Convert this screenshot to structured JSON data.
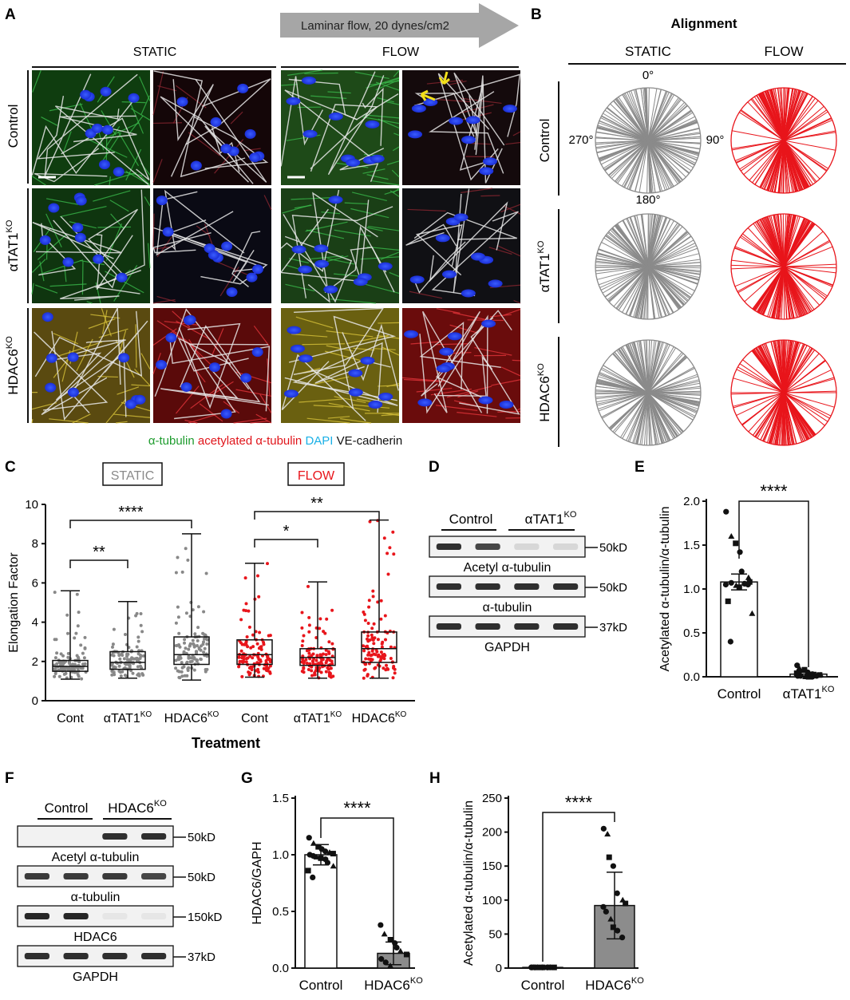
{
  "panels": {
    "A": {
      "letter": "A",
      "arrow_text": "Laminar flow, 20 dynes/cm2",
      "static": "STATIC",
      "flow": "FLOW",
      "rows": [
        {
          "base": "Control",
          "sup": ""
        },
        {
          "base": "αTAT1",
          "sup": "KO"
        },
        {
          "base": "HDAC6",
          "sup": "KO"
        }
      ],
      "legend": [
        {
          "text": "α-tubulin",
          "color": "#1e9c2e"
        },
        {
          "text": "acetylated α-tubulin",
          "color": "#e0151b"
        },
        {
          "text": "DAPI",
          "color": "#1ab0e6"
        },
        {
          "text": "VE-cadherin",
          "color": "#111111"
        }
      ]
    },
    "B": {
      "letter": "B",
      "title": "Alignment",
      "static": "STATIC",
      "flow": "FLOW",
      "angles": [
        "0°",
        "90°",
        "180°",
        "270°"
      ],
      "static_color": "#8a8a8a",
      "flow_color": "#e8151b"
    },
    "C": {
      "letter": "C",
      "static_box": "STATIC",
      "flow_box": "FLOW",
      "sig": [
        "**",
        "****",
        "*",
        "**"
      ]
    },
    "D": {
      "letter": "D",
      "lanes": [
        {
          "base": "Control",
          "sup": ""
        },
        {
          "base": "αTAT1",
          "sup": "KO"
        }
      ],
      "blots": [
        "Acetyl α-tubulin",
        "α-tubulin",
        "GAPDH"
      ],
      "sizes": [
        "50kD",
        "50kD",
        "37kD"
      ]
    },
    "E": {
      "letter": "E",
      "sig": "****"
    },
    "F": {
      "letter": "F",
      "lanes": [
        {
          "base": "Control",
          "sup": ""
        },
        {
          "base": "HDAC6",
          "sup": "KO"
        }
      ],
      "blots": [
        "Acetyl α-tubulin",
        "α-tubulin",
        "HDAC6",
        "GAPDH"
      ],
      "sizes": [
        "50kD",
        "50kD",
        "150kD",
        "37kD"
      ]
    },
    "G": {
      "letter": "G",
      "sig": "****"
    },
    "H": {
      "letter": "H",
      "sig": "****"
    }
  },
  "chart_data": [
    {
      "panel": "C",
      "type": "box",
      "ylabel": "Elongation Factor",
      "xlabel": "Treatment",
      "ylim": [
        0,
        10
      ],
      "yticks": [
        0,
        2,
        4,
        6,
        8,
        10
      ],
      "categories": [
        {
          "base": "Cont",
          "sup": ""
        },
        {
          "base": "αTAT1",
          "sup": "KO"
        },
        {
          "base": "HDAC6",
          "sup": "KO"
        },
        {
          "base": "Cont",
          "sup": ""
        },
        {
          "base": "αTAT1",
          "sup": "KO"
        },
        {
          "base": "HDAC6",
          "sup": "KO"
        }
      ],
      "series": [
        {
          "group": "STATIC",
          "color": "#888888",
          "boxes": [
            {
              "min": 1.1,
              "q1": 1.5,
              "median": 1.75,
              "q3": 2.05,
              "max": 5.6
            },
            {
              "min": 1.15,
              "q1": 1.6,
              "median": 1.95,
              "q3": 2.5,
              "max": 5.05
            },
            {
              "min": 1.05,
              "q1": 1.85,
              "median": 2.35,
              "q3": 3.25,
              "max": 8.5
            }
          ]
        },
        {
          "group": "FLOW",
          "color": "#e8151b",
          "boxes": [
            {
              "min": 1.2,
              "q1": 1.85,
              "median": 2.35,
              "q3": 3.1,
              "max": 7.0
            },
            {
              "min": 1.15,
              "q1": 1.8,
              "median": 2.2,
              "q3": 2.65,
              "max": 6.05
            },
            {
              "min": 1.15,
              "q1": 1.95,
              "median": 2.65,
              "q3": 3.5,
              "max": 9.2
            }
          ]
        }
      ]
    },
    {
      "panel": "E",
      "type": "bar",
      "ylabel": "Acetylated α-tubulin/α-tubulin",
      "ylim": [
        0,
        2.0
      ],
      "yticks": [
        0.0,
        0.5,
        1.0,
        1.5,
        2.0
      ],
      "categories": [
        {
          "base": "Control",
          "sup": ""
        },
        {
          "base": "αTAT1",
          "sup": "KO"
        }
      ],
      "values": [
        1.08,
        0.03
      ],
      "errors": [
        0.09,
        0.02
      ],
      "points": [
        [
          1.88,
          1.6,
          1.52,
          1.42,
          1.2,
          1.13,
          1.08,
          1.05,
          1.07,
          1.04,
          1.02,
          1.06,
          1.05,
          0.72,
          0.86,
          0.4
        ],
        [
          0.13,
          0.1,
          0.08,
          0.05,
          0.03,
          0.02,
          0.02,
          0.01,
          0.01,
          0.0,
          0.0,
          0.0,
          0.01,
          0.02,
          0.04,
          0.06
        ]
      ],
      "bar_colors": [
        "#ffffff",
        "#ffffff"
      ]
    },
    {
      "panel": "G",
      "type": "bar",
      "ylabel": "HDAC6/GAPH",
      "ylim": [
        0,
        1.5
      ],
      "yticks": [
        0.0,
        0.5,
        1.0,
        1.5
      ],
      "categories": [
        {
          "base": "Control",
          "sup": ""
        },
        {
          "base": "HDAC6",
          "sup": "KO"
        }
      ],
      "values": [
        1.0,
        0.13
      ],
      "errors": [
        0.09,
        0.1
      ],
      "points": [
        [
          1.15,
          1.1,
          1.07,
          1.05,
          1.03,
          1.02,
          1.01,
          1.0,
          0.99,
          0.98,
          0.97,
          0.96,
          0.93,
          0.9,
          0.86,
          0.8
        ],
        [
          0.38,
          0.3,
          0.25,
          0.22,
          0.18,
          0.15,
          0.12,
          0.08,
          0.05,
          0.02
        ]
      ],
      "bar_colors": [
        "#ffffff",
        "#8c8c8c"
      ]
    },
    {
      "panel": "H",
      "type": "bar",
      "ylabel": "Acetylated α-tubulin/α-tubulin",
      "ylim": [
        0,
        250
      ],
      "yticks": [
        0,
        50,
        100,
        150,
        200,
        250
      ],
      "categories": [
        {
          "base": "Control",
          "sup": ""
        },
        {
          "base": "HDAC6",
          "sup": "KO"
        }
      ],
      "values": [
        1,
        92
      ],
      "errors": [
        0.5,
        49
      ],
      "points": [
        [
          1,
          1,
          1,
          1,
          1,
          1,
          1,
          1,
          1,
          1,
          1,
          1,
          1
        ],
        [
          205,
          197,
          163,
          150,
          110,
          100,
          95,
          90,
          83,
          72,
          60,
          55,
          45
        ]
      ],
      "bar_colors": [
        "#ffffff",
        "#8c8c8c"
      ]
    }
  ]
}
